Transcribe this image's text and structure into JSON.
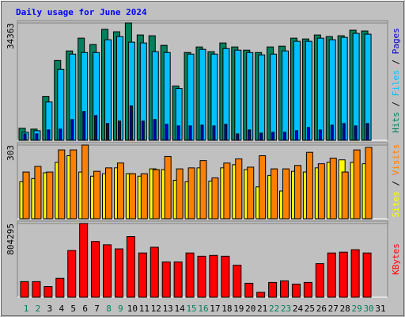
{
  "chart_data": [
    {
      "type": "bar",
      "title": "Daily usage for June 2024",
      "ylim": [
        0,
        34363
      ],
      "yticks": [
        34363
      ],
      "legend_separator": " / ",
      "series": [
        {
          "name": "Pages",
          "color": "#0000c0",
          "values": [
            1870,
            1870,
            3039,
            3273,
            6078,
            8415,
            7247,
            4909,
            5610,
            10052,
            5610,
            6078,
            4676,
            4208,
            4208,
            4441,
            4208,
            4676,
            1870,
            3039,
            2104,
            2338,
            2338,
            2805,
            3740,
            3039,
            4441,
            4909,
            4208,
            4909,
            0
          ]
        },
        {
          "name": "Files",
          "color": "#00c0ff",
          "values": [
            2338,
            2805,
            11220,
            20805,
            25246,
            25714,
            25714,
            29454,
            30389,
            28753,
            28519,
            25948,
            25714,
            15194,
            25246,
            26649,
            25246,
            26882,
            26415,
            25714,
            25012,
            25246,
            26181,
            28987,
            28987,
            29921,
            29454,
            30155,
            31324,
            31090,
            0
          ]
        },
        {
          "name": "Hits",
          "color": "#00805c",
          "values": [
            3506,
            3270,
            12857,
            23376,
            26181,
            29922,
            28052,
            32494,
            31792,
            34363,
            30857,
            30623,
            27818,
            15896,
            25714,
            27350,
            25948,
            28519,
            27350,
            26415,
            25714,
            27350,
            27584,
            29922,
            29688,
            30857,
            30389,
            30623,
            32260,
            32026,
            0
          ]
        }
      ]
    },
    {
      "type": "bar",
      "ylim": [
        0,
        303
      ],
      "yticks": [
        303
      ],
      "legend_separator": " / ",
      "series": [
        {
          "name": "Sites",
          "color": "#ffff00",
          "values": [
            152,
            165,
            189,
            232,
            259,
            192,
            175,
            185,
            209,
            185,
            175,
            205,
            202,
            158,
            152,
            209,
            155,
            209,
            222,
            202,
            131,
            178,
            114,
            195,
            192,
            209,
            232,
            242,
            232,
            226,
            0
          ]
        },
        {
          "name": "Visits",
          "color": "#ff8000",
          "values": [
            192,
            215,
            192,
            283,
            283,
            303,
            195,
            209,
            229,
            185,
            185,
            202,
            256,
            205,
            209,
            239,
            168,
            229,
            246,
            212,
            259,
            205,
            205,
            219,
            273,
            226,
            249,
            192,
            283,
            293,
            0
          ]
        }
      ]
    },
    {
      "type": "bar",
      "ylim": [
        0,
        804295
      ],
      "yticks": [
        804295
      ],
      "categories": [
        "1",
        "2",
        "3",
        "4",
        "5",
        "6",
        "7",
        "8",
        "9",
        "10",
        "11",
        "12",
        "13",
        "14",
        "15",
        "16",
        "17",
        "18",
        "19",
        "20",
        "21",
        "22",
        "23",
        "24",
        "25",
        "26",
        "27",
        "28",
        "29",
        "30",
        "31"
      ],
      "category_colors": [
        "#00805c",
        "#00805c",
        "#000000",
        "#000000",
        "#000000",
        "#000000",
        "#000000",
        "#00805c",
        "#00805c",
        "#000000",
        "#000000",
        "#000000",
        "#000000",
        "#000000",
        "#00805c",
        "#00805c",
        "#000000",
        "#000000",
        "#000000",
        "#000000",
        "#000000",
        "#00805c",
        "#00805c",
        "#000000",
        "#000000",
        "#000000",
        "#000000",
        "#000000",
        "#00805c",
        "#00805c",
        "#000000"
      ],
      "series": [
        {
          "name": "KBytes",
          "color": "#ff0000",
          "values": [
            169803,
            169803,
            116181,
            205551,
            509409,
            804295,
            607716,
            571968,
            527283,
            661338,
            482598,
            545157,
            384291,
            384291,
            482598,
            446850,
            455787,
            446850,
            348543,
            151929,
            53622,
            160866,
            178740,
            142992,
            160866,
            366417,
            482598,
            491535,
            518346,
            482598,
            0
          ]
        }
      ]
    }
  ]
}
